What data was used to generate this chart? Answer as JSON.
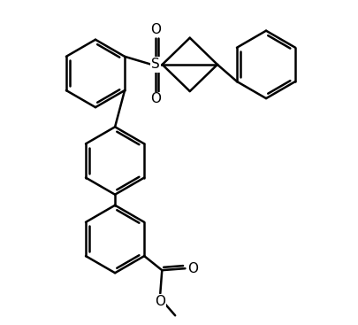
{
  "background_color": "#ffffff",
  "line_color": "#000000",
  "line_width": 1.8,
  "figsize": [
    4.05,
    3.67
  ],
  "dpi": 100,
  "xlim": [
    0,
    10
  ],
  "ylim": [
    0,
    9
  ]
}
